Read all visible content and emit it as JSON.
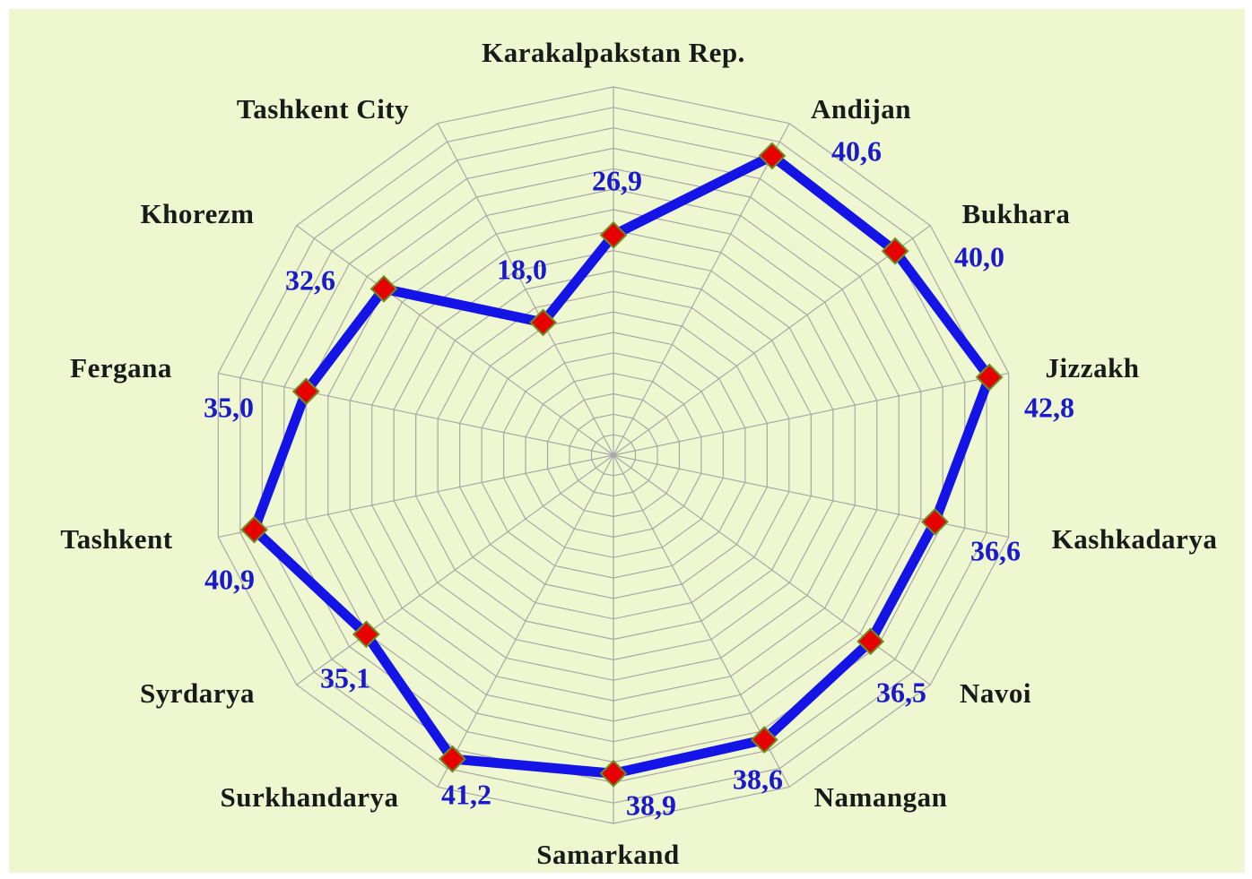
{
  "chart_data": {
    "type": "radar",
    "categories": [
      "Karakalpakstan Rep.",
      "Andijan",
      "Bukhara",
      "Jizzakh",
      "Kashkadarya",
      "Navoi",
      "Namangan",
      "Samarkand",
      "Surkhandarya",
      "Syrdarya",
      "Tashkent",
      "Fergana",
      "Khorezm",
      "Tashkent City"
    ],
    "series": [
      {
        "color": "#1414e6",
        "values": [
          26.9,
          40.6,
          40.0,
          42.8,
          36.6,
          36.5,
          38.6,
          38.9,
          41.2,
          35.1,
          40.9,
          35.0,
          32.6,
          18.0
        ],
        "value_labels": [
          "26,9",
          "40,6",
          "40,0",
          "42,8",
          "36,6",
          "36,5",
          "38,6",
          "38,9",
          "41,2",
          "35,1",
          "40,9",
          "35,0",
          "32,6",
          "18,0"
        ]
      }
    ],
    "marker_color": "#e60000",
    "ylim": [
      0,
      45
    ],
    "yticks": [
      0,
      2.5,
      5,
      7.5,
      10,
      12.5,
      15,
      17.5,
      20,
      22.5,
      25,
      27.5,
      30,
      32.5,
      35,
      37.5,
      40,
      42.5,
      45
    ],
    "grid": true
  }
}
